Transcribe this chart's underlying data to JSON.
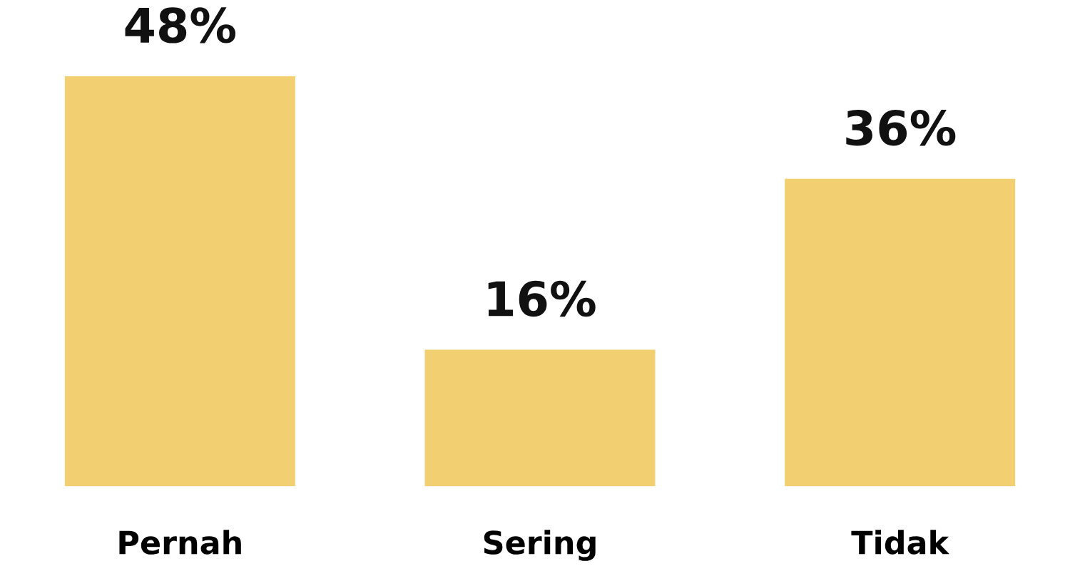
{
  "chart_data": {
    "type": "bar",
    "categories": [
      "Pernah",
      "Sering",
      "Tidak"
    ],
    "values": [
      48,
      16,
      36
    ],
    "value_labels": [
      "48%",
      "16%",
      "36%"
    ],
    "color": "#f2cf70"
  }
}
